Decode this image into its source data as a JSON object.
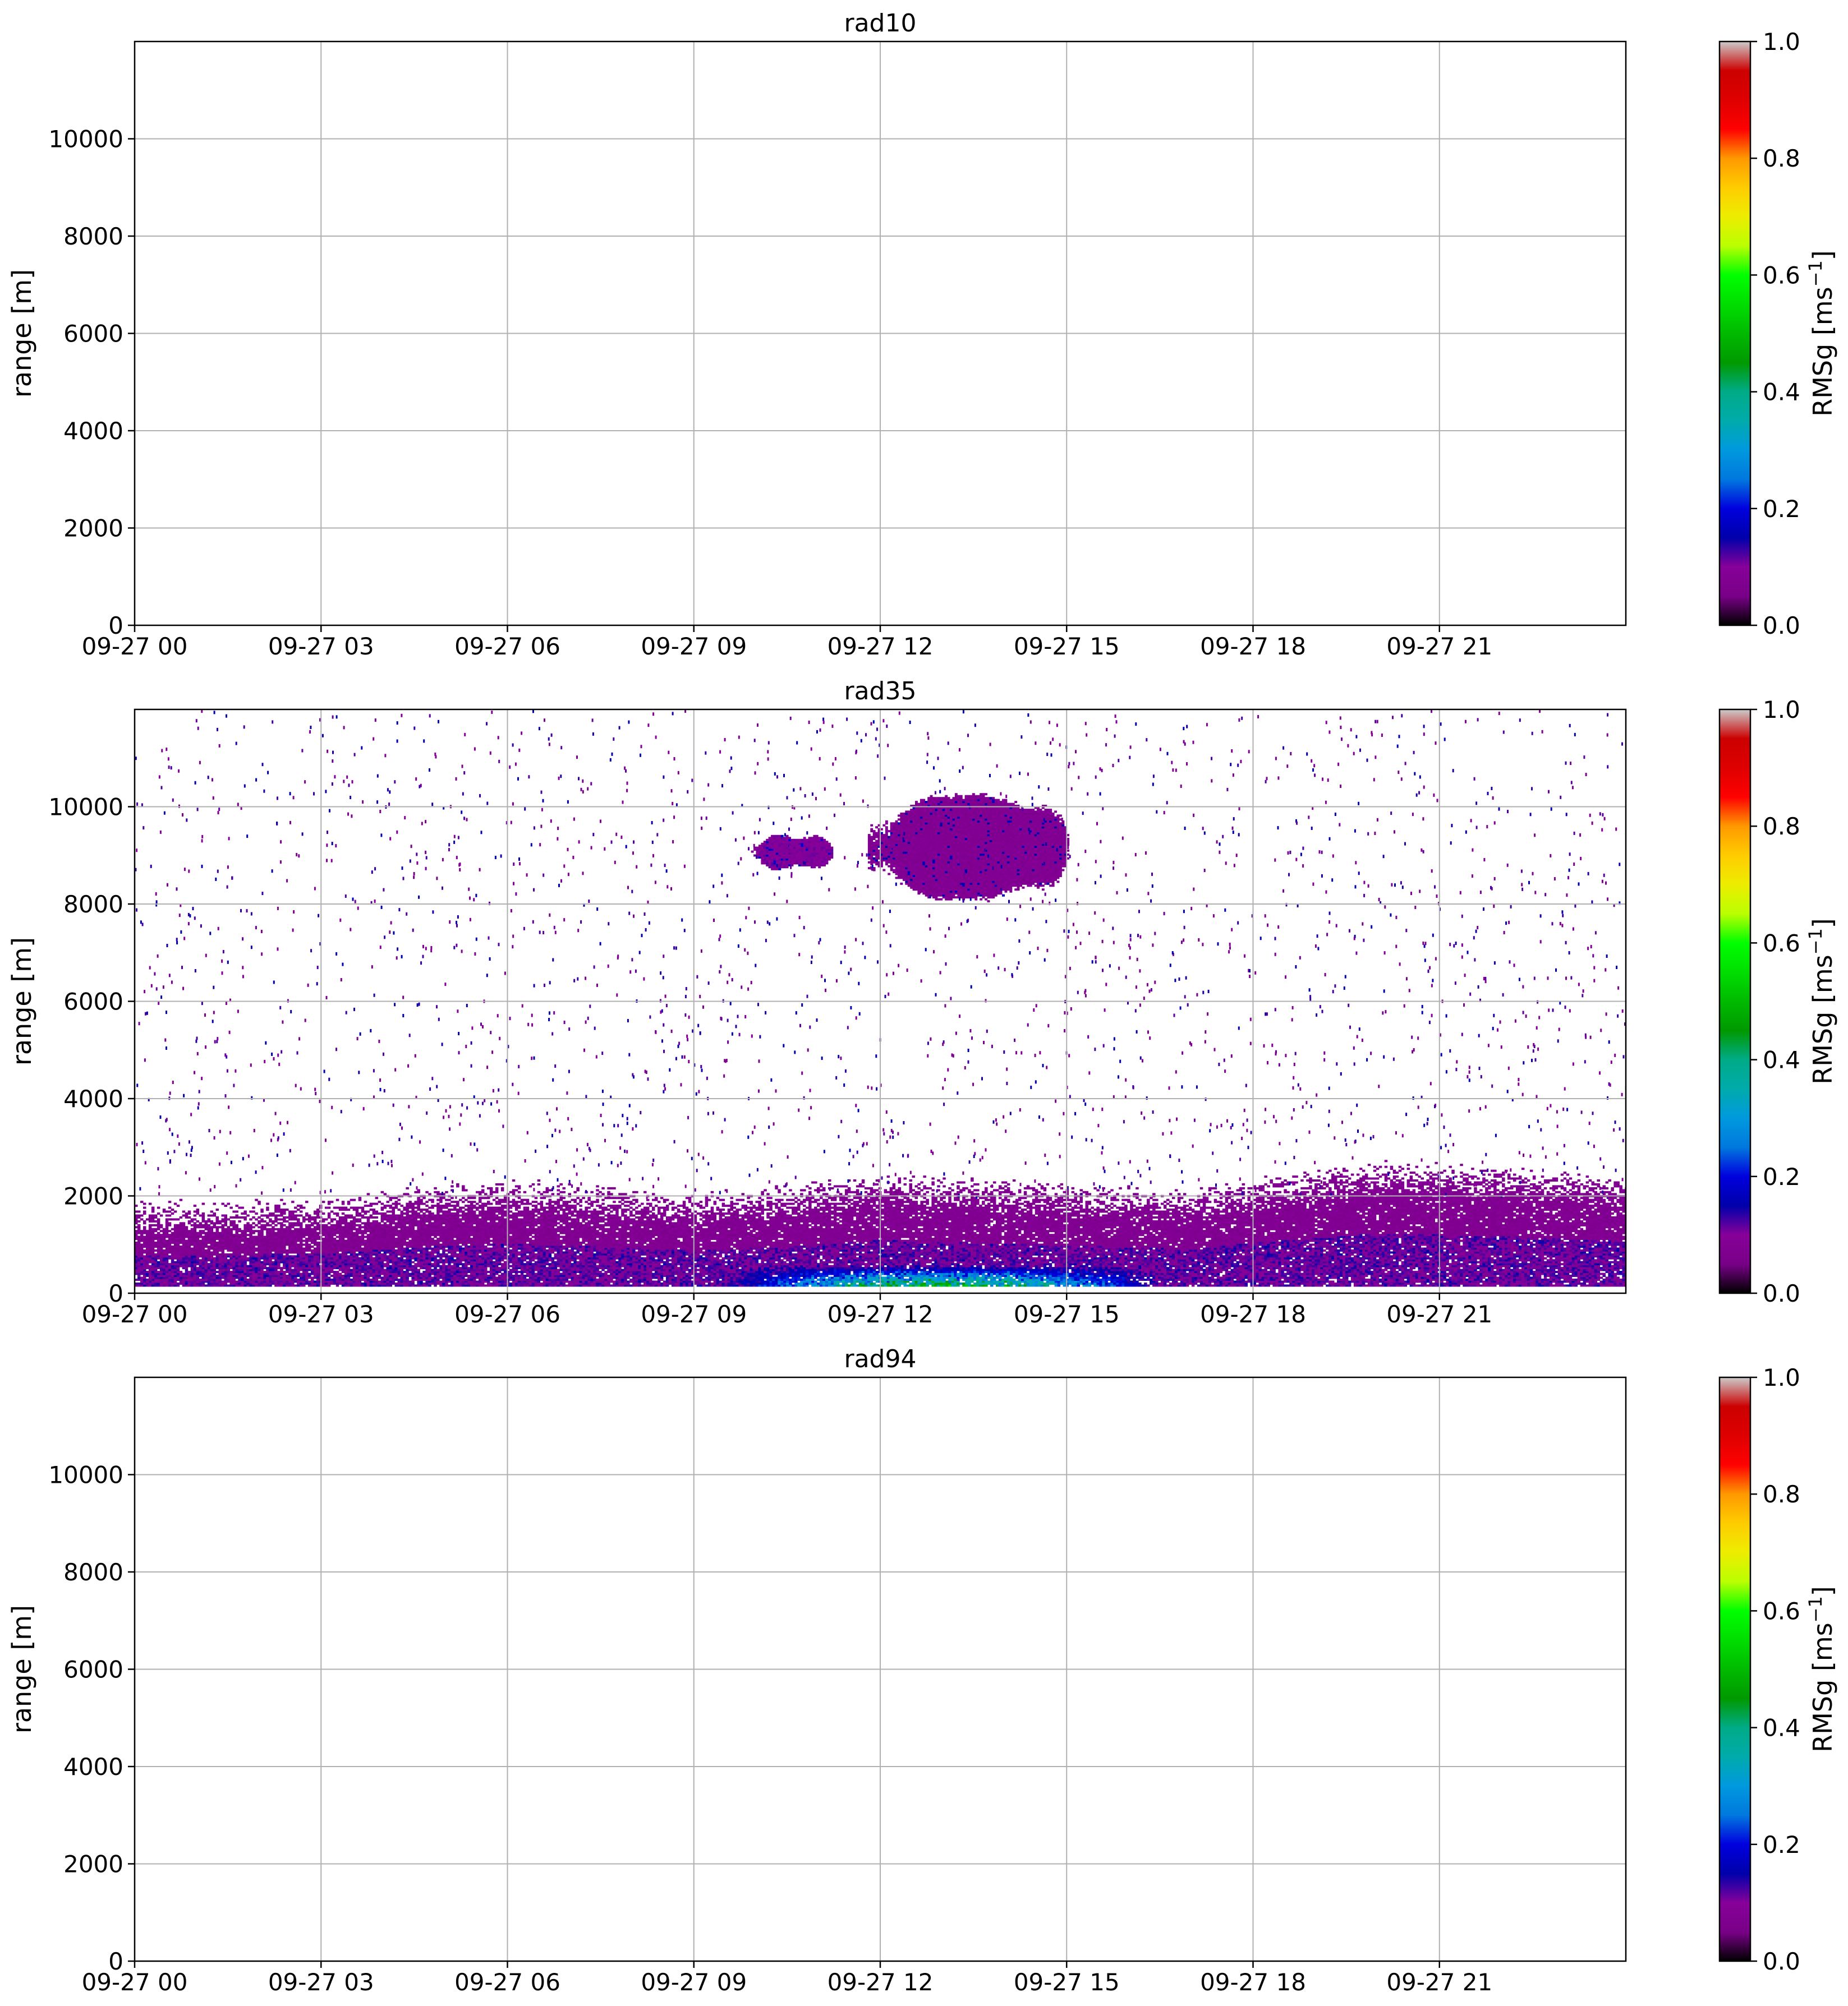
{
  "chart_data": [
    {
      "type": "heatmap",
      "title": "rad10",
      "ylabel": "range [m]",
      "xlabel": "",
      "x_range": [
        "09-27 00",
        "09-28 00"
      ],
      "x_ticks": [
        "09-27 00",
        "09-27 03",
        "09-27 06",
        "09-27 09",
        "09-27 12",
        "09-27 15",
        "09-27 18",
        "09-27 21"
      ],
      "y_ticks": [
        0,
        2000,
        4000,
        6000,
        8000,
        10000
      ],
      "ylim": [
        0,
        12000
      ],
      "grid": true,
      "has_data": false,
      "colorbar": {
        "label_main": "RMSg [ms",
        "label_sup": "−1",
        "label_end": "]",
        "range": [
          0.0,
          1.0
        ],
        "ticks": [
          "0.0",
          "0.2",
          "0.4",
          "0.6",
          "0.8",
          "1.0"
        ],
        "colormap": "nipy_spectral"
      }
    },
    {
      "type": "heatmap",
      "title": "rad35",
      "ylabel": "range [m]",
      "xlabel": "",
      "x_range": [
        "09-27 00",
        "09-28 00"
      ],
      "x_ticks": [
        "09-27 00",
        "09-27 03",
        "09-27 06",
        "09-27 09",
        "09-27 12",
        "09-27 15",
        "09-27 18",
        "09-27 21"
      ],
      "y_ticks": [
        0,
        2000,
        4000,
        6000,
        8000,
        10000
      ],
      "ylim": [
        0,
        12000
      ],
      "grid": true,
      "has_data": true,
      "boundary_layer_top_m": [
        [
          0,
          1350
        ],
        [
          3,
          1450
        ],
        [
          5,
          1750
        ],
        [
          6,
          1800
        ],
        [
          7,
          1750
        ],
        [
          9,
          1550
        ],
        [
          10.5,
          1700
        ],
        [
          12,
          1950
        ],
        [
          15,
          1750
        ],
        [
          17,
          1600
        ],
        [
          18,
          1850
        ],
        [
          20,
          2200
        ],
        [
          22,
          2100
        ],
        [
          24,
          1900
        ]
      ],
      "high_turbulence_hours": [
        9.5,
        16.5
      ],
      "cirrus_main": {
        "hours": [
          11.8,
          15.0
        ],
        "range_m": [
          8000,
          10300
        ],
        "rmsg": 0.08
      },
      "cirrus_small": {
        "hours": [
          9.8,
          11.3
        ],
        "range_m": [
          8700,
          9400
        ],
        "rmsg": 0.1
      },
      "colorbar": {
        "label_main": "RMSg [ms",
        "label_sup": "−1",
        "label_end": "]",
        "range": [
          0.0,
          1.0
        ],
        "ticks": [
          "0.0",
          "0.2",
          "0.4",
          "0.6",
          "0.8",
          "1.0"
        ],
        "colormap": "nipy_spectral"
      }
    },
    {
      "type": "heatmap",
      "title": "rad94",
      "ylabel": "range [m]",
      "xlabel": "",
      "x_range": [
        "09-27 00",
        "09-28 00"
      ],
      "x_ticks": [
        "09-27 00",
        "09-27 03",
        "09-27 06",
        "09-27 09",
        "09-27 12",
        "09-27 15",
        "09-27 18",
        "09-27 21"
      ],
      "y_ticks": [
        0,
        2000,
        4000,
        6000,
        8000,
        10000
      ],
      "ylim": [
        0,
        12000
      ],
      "grid": true,
      "has_data": false,
      "colorbar": {
        "label_main": "RMSg [ms",
        "label_sup": "−1",
        "label_end": "]",
        "range": [
          0.0,
          1.0
        ],
        "ticks": [
          "0.0",
          "0.2",
          "0.4",
          "0.6",
          "0.8",
          "1.0"
        ],
        "colormap": "nipy_spectral"
      }
    }
  ]
}
